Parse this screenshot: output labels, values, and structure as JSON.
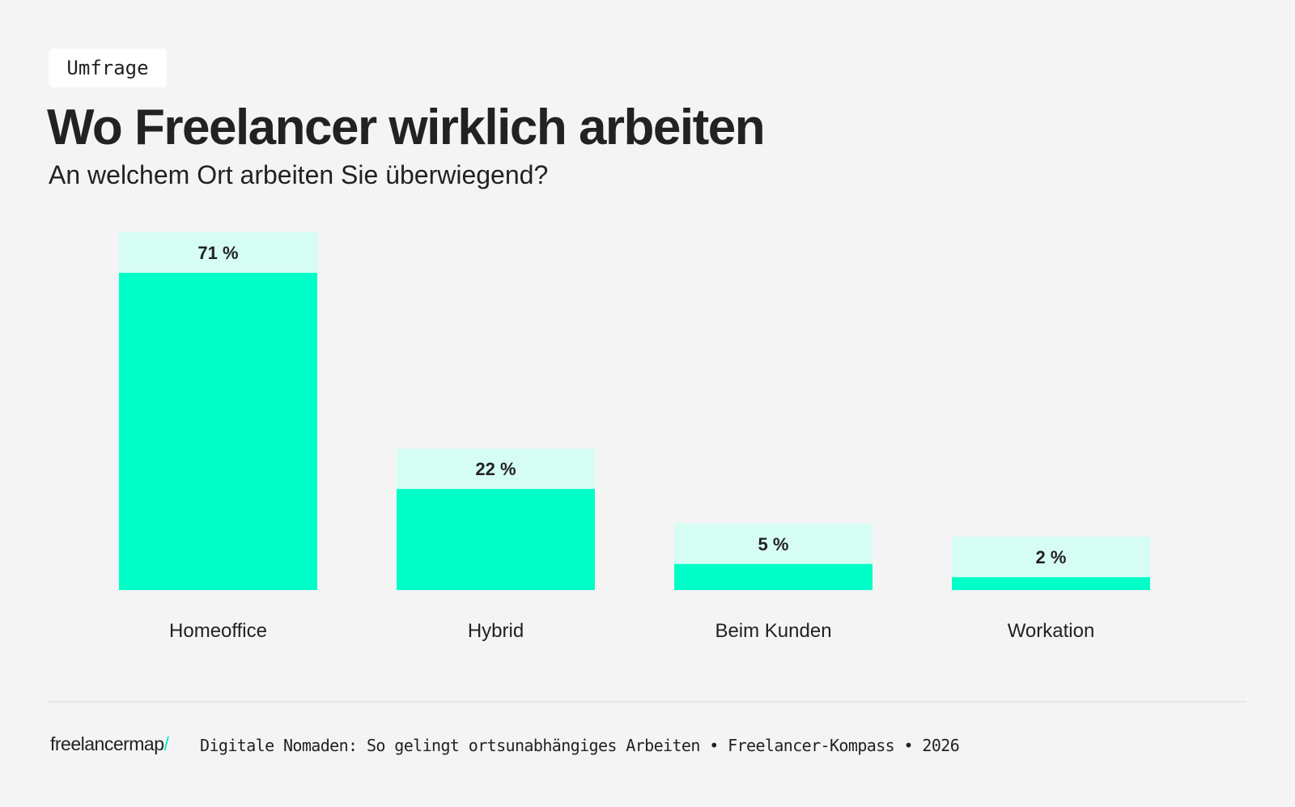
{
  "tag": "Umfrage",
  "title": "Wo Freelancer wirklich arbeiten",
  "subtitle": "An welchem Ort arbeiten Sie überwiegend?",
  "chart_data": {
    "type": "bar",
    "categories": [
      "Homeoffice",
      "Hybrid",
      "Beim Kunden",
      "Workation"
    ],
    "values": [
      71,
      22,
      5,
      2
    ],
    "data_labels": [
      "71 %",
      "22 %",
      "5 %",
      "2 %"
    ],
    "unit": "%",
    "ylim": [
      0,
      71
    ],
    "grid": false,
    "colors": {
      "bar": "#00ffc8",
      "label_box": "#d5fdf3",
      "text": "#222222",
      "background": "#f4f4f4"
    }
  },
  "footer": {
    "logo": "freelancermap",
    "logo_accent": "/",
    "source": "Digitale Nomaden: So gelingt ortsunabhängiges Arbeiten • Freelancer-Kompass • 2026"
  }
}
